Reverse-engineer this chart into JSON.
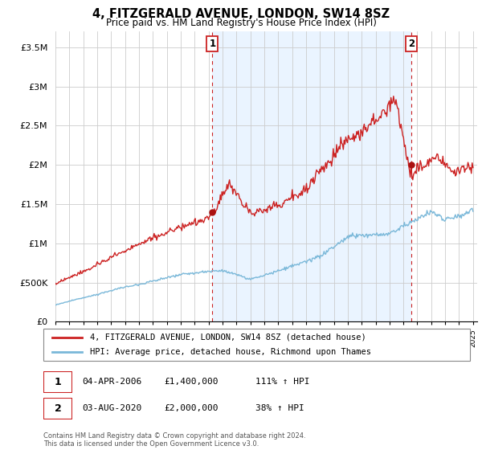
{
  "title": "4, FITZGERALD AVENUE, LONDON, SW14 8SZ",
  "subtitle": "Price paid vs. HM Land Registry's House Price Index (HPI)",
  "legend_line1": "4, FITZGERALD AVENUE, LONDON, SW14 8SZ (detached house)",
  "legend_line2": "HPI: Average price, detached house, Richmond upon Thames",
  "annotation1_date": "04-APR-2006",
  "annotation1_price": "£1,400,000",
  "annotation1_hpi": "111% ↑ HPI",
  "annotation2_date": "03-AUG-2020",
  "annotation2_price": "£2,000,000",
  "annotation2_hpi": "38% ↑ HPI",
  "footer": "Contains HM Land Registry data © Crown copyright and database right 2024.\nThis data is licensed under the Open Government Licence v3.0.",
  "hpi_color": "#7ab8d9",
  "price_color": "#cc2222",
  "marker_color": "#aa1111",
  "shade_color": "#ddeeff",
  "ylim": [
    0,
    3700000
  ],
  "yticks": [
    0,
    500000,
    1000000,
    1500000,
    2000000,
    2500000,
    3000000,
    3500000
  ],
  "ytick_labels": [
    "£0",
    "£500K",
    "£1M",
    "£1.5M",
    "£2M",
    "£2.5M",
    "£3M",
    "£3.5M"
  ],
  "sale1_year": 2006.27,
  "sale1_price": 1400000,
  "sale2_year": 2020.58,
  "sale2_price": 2000000,
  "xlim_left": 1995,
  "xlim_right": 2025.3
}
